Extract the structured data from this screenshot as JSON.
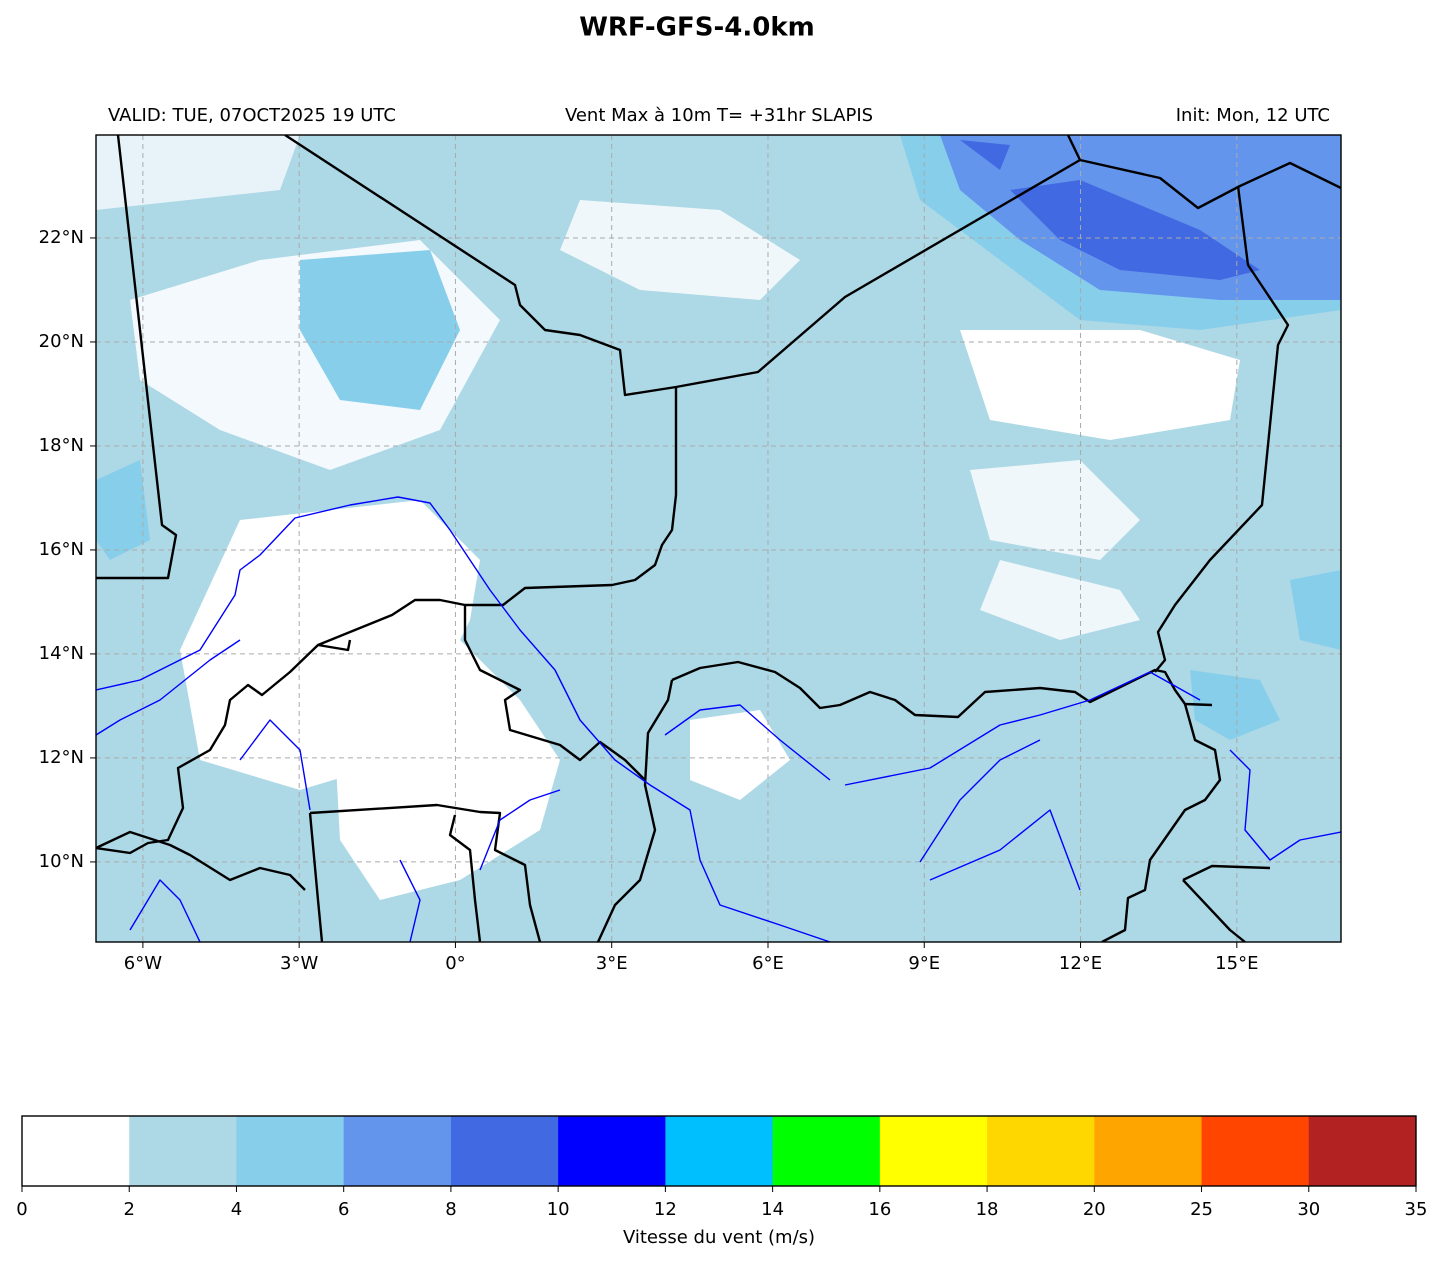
{
  "title": "WRF-GFS-4.0km",
  "subtitle_left": "VALID: TUE, 07OCT2025 19 UTC",
  "subtitle_center": "Vent Max à 10m T= +31hr SLAPIS",
  "subtitle_right": "Init: Mon, 12 UTC",
  "map": {
    "xlim": [
      -6.9,
      17.0
    ],
    "ylim": [
      8.46,
      23.98
    ],
    "xticks": [
      {
        "value": -6,
        "label": "6°W"
      },
      {
        "value": -3,
        "label": "3°W"
      },
      {
        "value": 0,
        "label": "0°"
      },
      {
        "value": 3,
        "label": "3°E"
      },
      {
        "value": 6,
        "label": "6°E"
      },
      {
        "value": 9,
        "label": "9°E"
      },
      {
        "value": 12,
        "label": "12°E"
      },
      {
        "value": 15,
        "label": "15°E"
      }
    ],
    "yticks": [
      {
        "value": 10,
        "label": "10°N"
      },
      {
        "value": 12,
        "label": "12°N"
      },
      {
        "value": 14,
        "label": "14°N"
      },
      {
        "value": 16,
        "label": "16°N"
      },
      {
        "value": 18,
        "label": "18°N"
      },
      {
        "value": 20,
        "label": "20°N"
      },
      {
        "value": 22,
        "label": "22°N"
      }
    ],
    "grid": true
  },
  "colorbar": {
    "levels": [
      0,
      2,
      4,
      6,
      8,
      10,
      12,
      14,
      16,
      18,
      20,
      25,
      30,
      35
    ],
    "colors": [
      "#ffffff",
      "#add8e6",
      "#87ceeb",
      "#6495ed",
      "#4169e1",
      "#0000ff",
      "#00bfff",
      "#00ff00",
      "#ffff00",
      "#ffd700",
      "#ffa500",
      "#ff4500",
      "#b22222"
    ],
    "label": "Vitesse du vent (m/s)"
  }
}
